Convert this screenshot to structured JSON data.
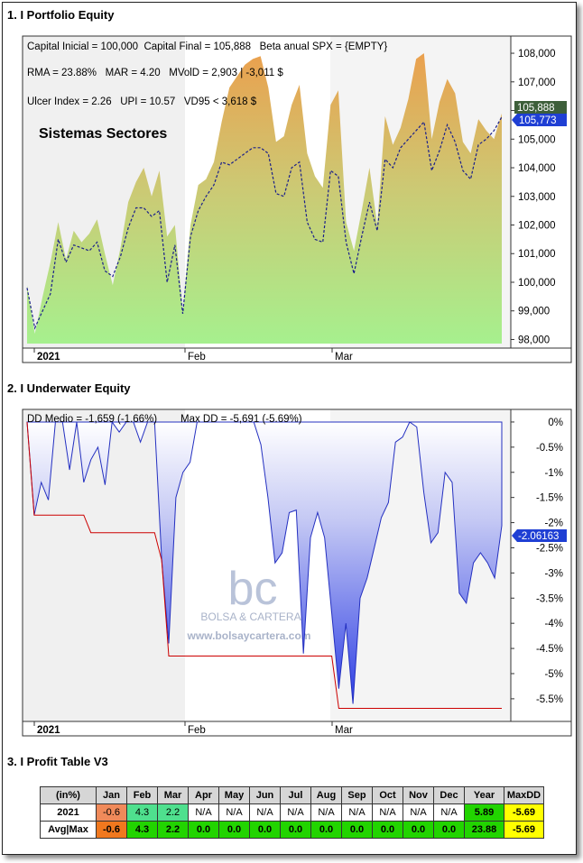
{
  "sections": {
    "portfolio_title": "1. I Portfolio Equity",
    "underwater_title": "2. I Underwater Equity",
    "profit_title": "3. I Profit Table V3"
  },
  "equity_chart": {
    "stats_line1": "Capital Inicial = 100,000  Capital Final = 105,888   Beta anual SPX = {EMPTY}",
    "stats_line2": "RMA = 23.88%   MAR = 4.20   MVolD = 2,903 | -3,011 $",
    "stats_line3": "Ulcer Index = 2.26   UPI = 10.57   VD95 < 3,618 $",
    "system_name": "Sistemas Sectores",
    "last_value_label": "105,888",
    "last_benchmark_label": "105,773"
  },
  "underwater_chart": {
    "stats": "DD Medio = -1,659 (-1.66%)",
    "maxdd": "Max DD = -5,691 (-5.69%)",
    "last_label": "-2.06163",
    "watermark_logo": "bc",
    "watermark_name": "BOLSA & CARTERA",
    "watermark_url": "www.bolsaycartera.com"
  },
  "x_axis_labels": [
    "2021",
    "Feb",
    "Mar"
  ],
  "colors": {
    "equity_top": "#eaa04e",
    "equity_bottom": "#a6f08e",
    "underwater_fill": "#3d4fe6",
    "drawdown_line": "#cc0000",
    "benchmark_line": "#1a1f8a",
    "last_label_bg": "#1f3fd4",
    "last_value_bg": "#3d5f3a"
  },
  "chart_data": [
    {
      "type": "area",
      "title": "Portfolio Equity",
      "ylim": [
        97700,
        108600
      ],
      "yticks": [
        "108,000",
        "107,000",
        "106,000",
        "105,000",
        "104,000",
        "103,000",
        "102,000",
        "101,000",
        "100,000",
        "99,000",
        "98,000"
      ],
      "series": [
        {
          "values": [
            99900,
            98200,
            99500,
            100700,
            102100,
            100800,
            101800,
            101400,
            101700,
            102200,
            101000,
            99900,
            101200,
            102800,
            103500,
            104000,
            103000,
            103900,
            101600,
            102000,
            99000,
            102000,
            103400,
            103600,
            104200,
            105600,
            106800,
            107200,
            107600,
            107800,
            107900,
            106800,
            104900,
            105100,
            106200,
            106900,
            104500,
            103700,
            103300,
            106200,
            106700,
            102100,
            101100,
            102500,
            104000,
            102000,
            105800,
            104800,
            105400,
            106400,
            107800,
            108000,
            105000,
            106300,
            107100,
            106600,
            104900,
            104500,
            105700,
            105300,
            105000,
            105900
          ]
        },
        {
          "values": [
            99800,
            98400,
            99000,
            99600,
            101500,
            100700,
            101300,
            101200,
            101100,
            101400,
            100400,
            100200,
            100900,
            101900,
            102600,
            102600,
            102300,
            102500,
            100000,
            101300,
            98900,
            101600,
            102500,
            103000,
            103400,
            104200,
            104100,
            104300,
            104500,
            104700,
            104700,
            104500,
            103100,
            103000,
            104000,
            104200,
            102100,
            101500,
            101400,
            103900,
            103700,
            101400,
            100300,
            101600,
            102800,
            101800,
            104300,
            104000,
            104700,
            105000,
            105300,
            105600,
            103900,
            104600,
            105500,
            104900,
            103900,
            103600,
            104800,
            105000,
            105300,
            105773
          ]
        }
      ]
    },
    {
      "type": "area",
      "title": "Underwater Equity",
      "ylim": [
        -5.95,
        0.25
      ],
      "yticks": [
        "0%",
        "-0.5%",
        "-1%",
        "-1.5%",
        "-2%",
        "-2.5%",
        "-3%",
        "-3.5%",
        "-4%",
        "-4.5%",
        "-5%",
        "-5.5%"
      ],
      "series": [
        {
          "values": [
            0.0,
            -1.85,
            -1.2,
            -1.55,
            0.0,
            0.0,
            -0.95,
            0.0,
            -1.2,
            -0.75,
            -0.5,
            -1.25,
            0.0,
            -0.2,
            0.0,
            0.0,
            -0.4,
            0.0,
            0.0,
            -2.75,
            -4.4,
            -1.5,
            -1.0,
            -0.8,
            0.0,
            0.0,
            0.0,
            0.0,
            0.0,
            0.0,
            0.0,
            0.0,
            0.0,
            -0.45,
            -1.5,
            -2.8,
            -2.6,
            -1.8,
            -1.75,
            -4.6,
            -2.3,
            -1.8,
            -2.3,
            -3.8,
            -5.3,
            -4.0,
            -5.6,
            -3.5,
            -3.1,
            -2.5,
            -1.9,
            -1.6,
            -0.4,
            -0.3,
            0.0,
            -0.1,
            -1.4,
            -2.4,
            -2.2,
            -1.0,
            -1.2,
            -3.4,
            -3.6,
            -2.8,
            -2.6,
            -2.8,
            -3.1,
            -2.06
          ]
        },
        {
          "values": [
            0.0,
            -1.85,
            -1.85,
            -1.85,
            -1.85,
            -1.85,
            -1.85,
            -1.85,
            -1.85,
            -2.2,
            -2.2,
            -2.2,
            -2.2,
            -2.2,
            -2.2,
            -2.2,
            -2.2,
            -2.2,
            -2.2,
            -2.75,
            -4.65,
            -4.65,
            -4.65,
            -4.65,
            -4.65,
            -4.65,
            -4.65,
            -4.65,
            -4.65,
            -4.65,
            -4.65,
            -4.65,
            -4.65,
            -4.65,
            -4.65,
            -4.65,
            -4.65,
            -4.65,
            -4.65,
            -4.65,
            -4.65,
            -4.65,
            -4.65,
            -4.65,
            -5.69,
            -5.69,
            -5.69,
            -5.69,
            -5.69,
            -5.69,
            -5.69,
            -5.69,
            -5.69,
            -5.69,
            -5.69,
            -5.69,
            -5.69,
            -5.69,
            -5.69,
            -5.69,
            -5.69,
            -5.69,
            -5.69,
            -5.69,
            -5.69,
            -5.69,
            -5.69,
            -5.69
          ]
        }
      ]
    },
    {
      "type": "table",
      "title": "Profit Table V3",
      "header": [
        "(in%)",
        "Jan",
        "Feb",
        "Mar",
        "Apr",
        "May",
        "Jun",
        "Jul",
        "Aug",
        "Sep",
        "Oct",
        "Nov",
        "Dec",
        "Year",
        "MaxDD"
      ],
      "rows": [
        {
          "label": "2021",
          "cells": [
            "-0.6",
            "4.3",
            "2.2",
            "N/A",
            "N/A",
            "N/A",
            "N/A",
            "N/A",
            "N/A",
            "N/A",
            "N/A",
            "N/A",
            "5.89",
            "-5.69"
          ],
          "colors": [
            "#f08a5a",
            "#4fe08e",
            "#4fe08e",
            "#ffffff",
            "#ffffff",
            "#ffffff",
            "#ffffff",
            "#ffffff",
            "#ffffff",
            "#ffffff",
            "#ffffff",
            "#ffffff",
            "#22d400",
            "#ffff00"
          ]
        },
        {
          "label": "Avg|Max",
          "cells": [
            "-0.6",
            "4.3",
            "2.2",
            "0.0",
            "0.0",
            "0.0",
            "0.0",
            "0.0",
            "0.0",
            "0.0",
            "0.0",
            "0.0",
            "23.88",
            "-5.69"
          ],
          "colors": [
            "#f0781e",
            "#22d400",
            "#22d400",
            "#22d400",
            "#22d400",
            "#22d400",
            "#22d400",
            "#22d400",
            "#22d400",
            "#22d400",
            "#22d400",
            "#22d400",
            "#22d400",
            "#ffff00"
          ]
        }
      ]
    }
  ]
}
